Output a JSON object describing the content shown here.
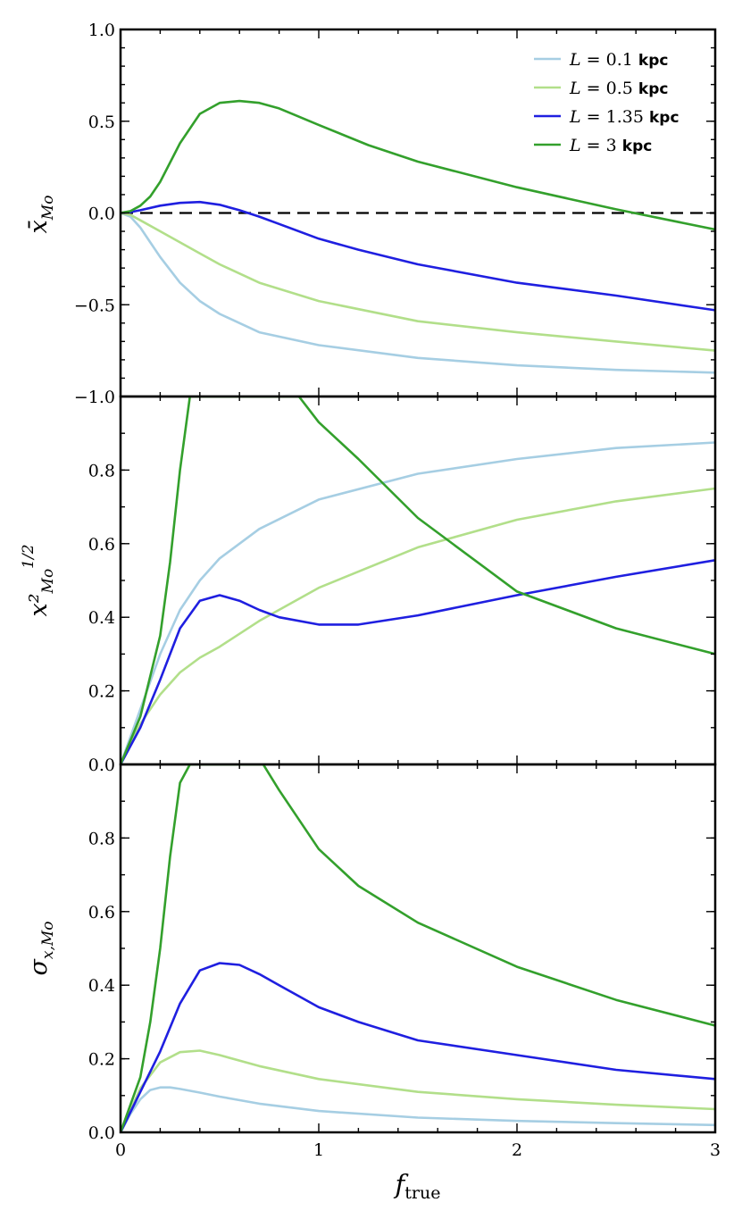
{
  "colors": {
    "L01": "#a6cee3",
    "L05": "#b2df8a",
    "L135": "#1f1fe0",
    "L3": "#33a02c"
  },
  "chart_data": [
    {
      "type": "line",
      "panel": "top",
      "ylabel": "x̄_Mo",
      "ylim": [
        -1.0,
        1.0
      ],
      "yticks": [
        "1.0",
        "0.5",
        "0.0",
        "−0.5",
        "−1.0"
      ],
      "ytick_values": [
        1.0,
        0.5,
        0.0,
        -0.5,
        -1.0
      ],
      "xlim": [
        0,
        3
      ],
      "zero_line": true,
      "legend_position": "top-right",
      "legend": [
        {
          "series": "L01",
          "label_var": "L",
          "label_eq": " = 0.1 ",
          "label_unit": "kpc"
        },
        {
          "series": "L05",
          "label_var": "L",
          "label_eq": " = 0.5 ",
          "label_unit": "kpc"
        },
        {
          "series": "L135",
          "label_var": "L",
          "label_eq": " = 1.35 ",
          "label_unit": "kpc"
        },
        {
          "series": "L3",
          "label_var": "L",
          "label_eq": " = 3 ",
          "label_unit": "kpc"
        }
      ],
      "series": [
        {
          "key": "L01",
          "x": [
            0,
            0.05,
            0.1,
            0.15,
            0.2,
            0.3,
            0.4,
            0.5,
            0.7,
            1.0,
            1.5,
            2.0,
            2.5,
            3.0
          ],
          "y": [
            0,
            -0.02,
            -0.08,
            -0.16,
            -0.24,
            -0.38,
            -0.48,
            -0.55,
            -0.65,
            -0.72,
            -0.79,
            -0.83,
            -0.855,
            -0.87
          ]
        },
        {
          "key": "L05",
          "x": [
            0,
            0.05,
            0.1,
            0.2,
            0.3,
            0.4,
            0.5,
            0.7,
            1.0,
            1.5,
            2.0,
            2.5,
            3.0
          ],
          "y": [
            0,
            -0.01,
            -0.04,
            -0.1,
            -0.16,
            -0.22,
            -0.28,
            -0.38,
            -0.48,
            -0.59,
            -0.65,
            -0.7,
            -0.75
          ]
        },
        {
          "key": "L135",
          "x": [
            0,
            0.05,
            0.1,
            0.2,
            0.3,
            0.4,
            0.5,
            0.6,
            0.7,
            0.8,
            1.0,
            1.2,
            1.5,
            2.0,
            2.5,
            3.0
          ],
          "y": [
            0,
            0.005,
            0.015,
            0.04,
            0.055,
            0.06,
            0.045,
            0.015,
            -0.02,
            -0.06,
            -0.14,
            -0.2,
            -0.28,
            -0.38,
            -0.45,
            -0.53
          ]
        },
        {
          "key": "L3",
          "x": [
            0,
            0.05,
            0.1,
            0.15,
            0.2,
            0.3,
            0.4,
            0.5,
            0.6,
            0.7,
            0.8,
            1.0,
            1.25,
            1.5,
            2.0,
            2.5,
            3.0
          ],
          "y": [
            0,
            0.01,
            0.04,
            0.09,
            0.17,
            0.38,
            0.54,
            0.6,
            0.61,
            0.6,
            0.57,
            0.48,
            0.37,
            0.28,
            0.14,
            0.02,
            -0.09
          ]
        }
      ]
    },
    {
      "type": "line",
      "panel": "middle",
      "ylabel": "x²_Mo^1/2",
      "ylim": [
        0.0,
        1.0
      ],
      "yticks": [
        "0.8",
        "0.6",
        "0.4",
        "0.2",
        "0.0"
      ],
      "ytick_values": [
        0.8,
        0.6,
        0.4,
        0.2,
        0.0
      ],
      "xlim": [
        0,
        3
      ],
      "series": [
        {
          "key": "L01",
          "x": [
            0,
            0.1,
            0.2,
            0.3,
            0.4,
            0.5,
            0.7,
            1.0,
            1.5,
            2.0,
            2.5,
            3.0
          ],
          "y": [
            0,
            0.15,
            0.3,
            0.42,
            0.5,
            0.56,
            0.64,
            0.72,
            0.79,
            0.83,
            0.86,
            0.875
          ]
        },
        {
          "key": "L05",
          "x": [
            0,
            0.1,
            0.2,
            0.3,
            0.4,
            0.5,
            0.7,
            1.0,
            1.5,
            2.0,
            2.5,
            3.0
          ],
          "y": [
            0,
            0.11,
            0.19,
            0.25,
            0.29,
            0.32,
            0.39,
            0.48,
            0.59,
            0.665,
            0.715,
            0.75
          ]
        },
        {
          "key": "L135",
          "x": [
            0,
            0.1,
            0.2,
            0.3,
            0.4,
            0.5,
            0.6,
            0.7,
            0.8,
            1.0,
            1.2,
            1.5,
            2.0,
            2.5,
            3.0
          ],
          "y": [
            0,
            0.1,
            0.23,
            0.37,
            0.445,
            0.46,
            0.445,
            0.42,
            0.4,
            0.38,
            0.38,
            0.405,
            0.46,
            0.51,
            0.555
          ]
        },
        {
          "key": "L3",
          "x": [
            0,
            0.1,
            0.2,
            0.25,
            0.3,
            0.35,
            0.9,
            1.0,
            1.2,
            1.5,
            2.0,
            2.5,
            3.0
          ],
          "y": [
            0,
            0.13,
            0.35,
            0.55,
            0.8,
            1.0,
            1.0,
            0.93,
            0.83,
            0.67,
            0.47,
            0.37,
            0.3
          ]
        }
      ]
    },
    {
      "type": "line",
      "panel": "bottom",
      "ylabel": "σ_x,Mo",
      "xlabel": "f_true",
      "ylim": [
        0.0,
        1.0
      ],
      "yticks": [
        "0.8",
        "0.6",
        "0.4",
        "0.2",
        "0.0"
      ],
      "ytick_values": [
        0.8,
        0.6,
        0.4,
        0.2,
        0.0
      ],
      "xlim": [
        0,
        3
      ],
      "xticks": [
        "0",
        "1",
        "2",
        "3"
      ],
      "xtick_values": [
        0,
        1,
        2,
        3
      ],
      "series": [
        {
          "key": "L01",
          "x": [
            0,
            0.05,
            0.1,
            0.15,
            0.2,
            0.25,
            0.3,
            0.4,
            0.5,
            0.7,
            1.0,
            1.5,
            2.0,
            2.5,
            3.0
          ],
          "y": [
            0,
            0.05,
            0.09,
            0.115,
            0.122,
            0.122,
            0.118,
            0.108,
            0.097,
            0.078,
            0.058,
            0.04,
            0.031,
            0.025,
            0.02
          ]
        },
        {
          "key": "L05",
          "x": [
            0,
            0.1,
            0.2,
            0.3,
            0.4,
            0.5,
            0.7,
            1.0,
            1.5,
            2.0,
            2.5,
            3.0
          ],
          "y": [
            0,
            0.12,
            0.19,
            0.218,
            0.222,
            0.21,
            0.18,
            0.145,
            0.11,
            0.09,
            0.075,
            0.063
          ]
        },
        {
          "key": "L135",
          "x": [
            0,
            0.1,
            0.2,
            0.3,
            0.4,
            0.5,
            0.6,
            0.7,
            0.8,
            1.0,
            1.2,
            1.5,
            2.0,
            2.5,
            3.0
          ],
          "y": [
            0,
            0.11,
            0.22,
            0.35,
            0.44,
            0.46,
            0.455,
            0.43,
            0.4,
            0.34,
            0.3,
            0.25,
            0.21,
            0.17,
            0.145
          ]
        },
        {
          "key": "L3",
          "x": [
            0,
            0.1,
            0.15,
            0.2,
            0.25,
            0.3,
            0.35,
            0.72,
            0.8,
            0.9,
            1.0,
            1.2,
            1.5,
            2.0,
            2.5,
            3.0
          ],
          "y": [
            0,
            0.15,
            0.3,
            0.5,
            0.75,
            0.95,
            1.0,
            1.0,
            0.93,
            0.85,
            0.77,
            0.67,
            0.57,
            0.45,
            0.36,
            0.29
          ]
        }
      ]
    }
  ]
}
